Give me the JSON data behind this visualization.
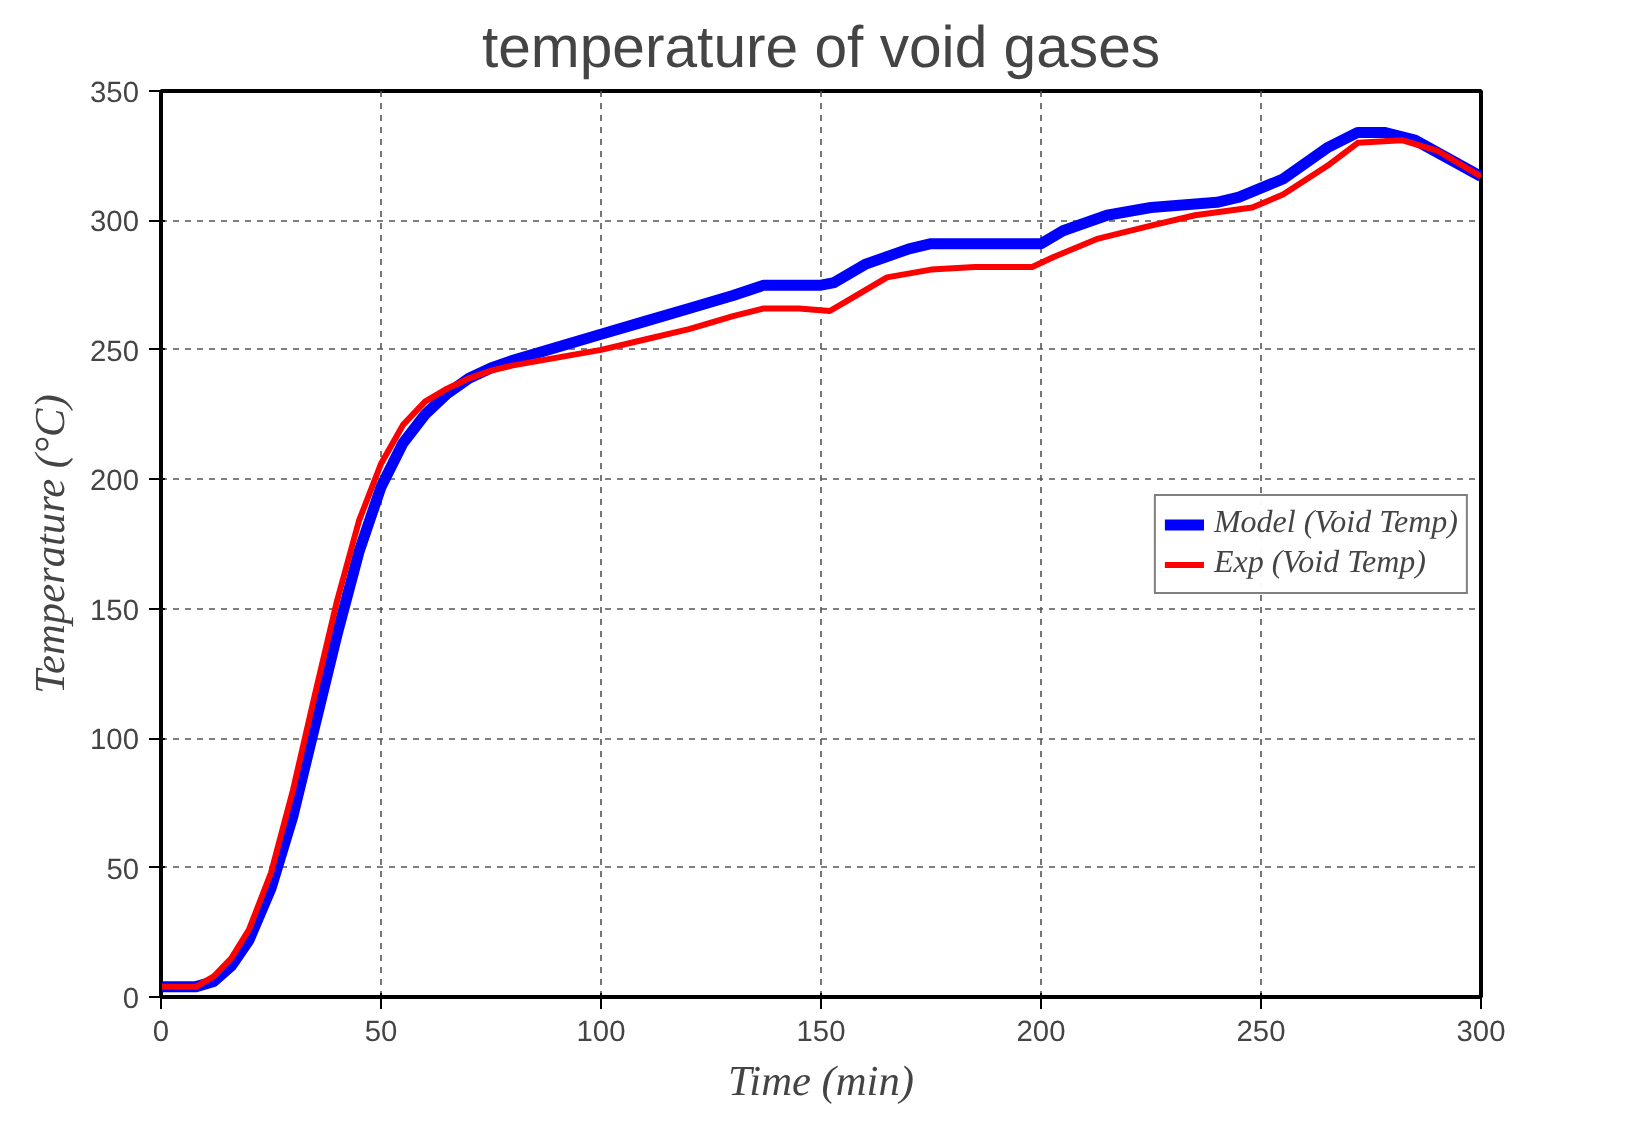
{
  "chart_data": {
    "type": "line",
    "title": "temperature of void gases",
    "xlabel": "Time (min)",
    "ylabel": "Temperature (°C)",
    "xlim": [
      0,
      300
    ],
    "xticks": [
      0,
      50,
      100,
      150,
      200,
      250,
      300
    ],
    "ylim": [
      0,
      350
    ],
    "yticks": [
      0,
      50,
      100,
      150,
      200,
      250,
      300,
      350
    ],
    "grid": true,
    "legend": "right",
    "line_style": "solid",
    "series": [
      {
        "name": "Model (Void Temp)",
        "color": "#0000ff",
        "x": [
          0,
          8,
          12,
          16,
          20,
          25,
          30,
          35,
          40,
          45,
          50,
          55,
          60,
          65,
          70,
          75,
          80,
          90,
          100,
          110,
          120,
          130,
          137,
          150,
          153,
          160,
          170,
          175,
          190,
          200,
          205,
          215,
          225,
          240,
          245,
          255,
          265,
          272,
          278,
          285,
          300
        ],
        "values": [
          4,
          4,
          6,
          12,
          22,
          42,
          70,
          105,
          140,
          172,
          197,
          214,
          225,
          233,
          239,
          243,
          246,
          251,
          256,
          261,
          266,
          271,
          275,
          275,
          276,
          283,
          289,
          291,
          291,
          291,
          296,
          302,
          305,
          307,
          309,
          316,
          328,
          334,
          334,
          331,
          317
        ]
      },
      {
        "name": "Exp (Void Temp)",
        "color": "#ff0000",
        "x": [
          0,
          8,
          12,
          16,
          20,
          25,
          30,
          35,
          40,
          45,
          50,
          55,
          60,
          65,
          70,
          75,
          80,
          90,
          100,
          110,
          120,
          130,
          137,
          145,
          152,
          157,
          165,
          175,
          185,
          198,
          203,
          213,
          225,
          235,
          248,
          255,
          265,
          272,
          282,
          290,
          300
        ],
        "values": [
          4,
          4,
          8,
          15,
          26,
          48,
          80,
          117,
          153,
          184,
          206,
          221,
          230,
          235,
          239,
          242,
          244,
          247,
          250,
          254,
          258,
          263,
          266,
          266,
          265,
          270,
          278,
          281,
          282,
          282,
          286,
          293,
          298,
          302,
          305,
          310,
          321,
          330,
          331,
          327,
          317
        ]
      }
    ]
  }
}
